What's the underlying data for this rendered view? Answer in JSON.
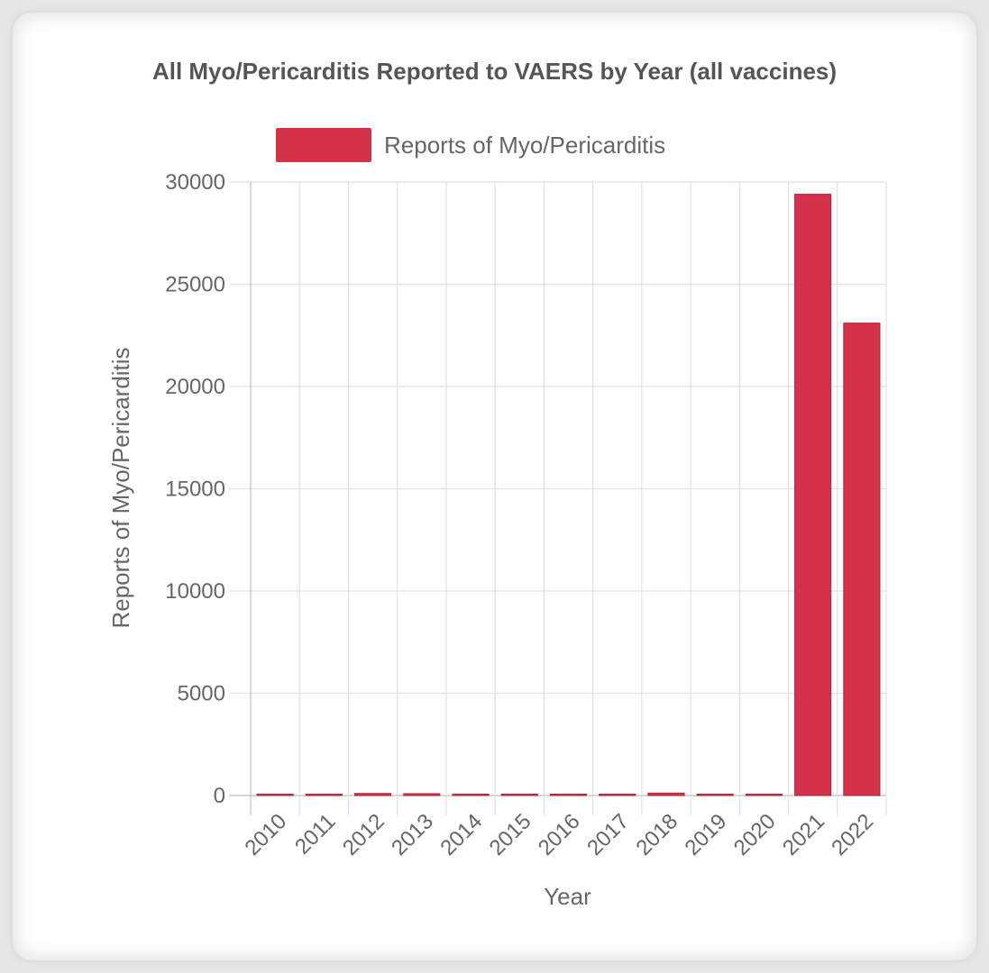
{
  "chart_data": {
    "type": "bar",
    "title": "All Myo/Pericarditis Reported to VAERS by Year (all vaccines)",
    "xlabel": "Year",
    "ylabel": "Reports of Myo/Pericarditis",
    "categories": [
      "2010",
      "2011",
      "2012",
      "2013",
      "2014",
      "2015",
      "2016",
      "2017",
      "2018",
      "2019",
      "2020",
      "2021",
      "2022"
    ],
    "series": [
      {
        "name": "Reports of Myo/Pericarditis",
        "values": [
          30,
          50,
          100,
          90,
          40,
          35,
          30,
          30,
          120,
          60,
          60,
          29400,
          23100
        ]
      }
    ],
    "ylim": [
      0,
      30000
    ],
    "yticks": [
      "0",
      "5000",
      "10000",
      "15000",
      "20000",
      "25000",
      "30000"
    ],
    "grid": true,
    "legend_position": "top",
    "bar_color": "#d4314a",
    "grid_color": "#e2e2e2",
    "axis_color": "#bdbdbd"
  }
}
